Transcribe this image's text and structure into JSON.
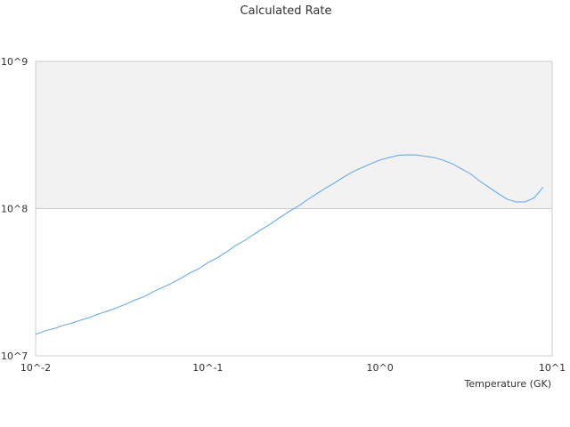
{
  "chart_data": {
    "type": "line",
    "title": "Calculated Rate",
    "xlabel": "Temperature (GK)",
    "ylabel": "",
    "x_scale": "log",
    "y_scale": "log",
    "xlim": [
      0.01,
      10
    ],
    "ylim": [
      10000000,
      1000000000
    ],
    "x_ticks": [
      "10^-2",
      "10^-1",
      "10^0",
      "10^1"
    ],
    "y_ticks": [
      "10^7",
      "10^8",
      "10^9"
    ],
    "grid": true,
    "legend": "none",
    "colors": {
      "line": "#5aa5e8",
      "band": "#f2f2f2",
      "border": "#cccccc"
    },
    "series": [
      {
        "x": [
          0.01,
          0.0114,
          0.0128,
          0.0144,
          0.0163,
          0.0183,
          0.0207,
          0.0234,
          0.0264,
          0.0298,
          0.0336,
          0.0379,
          0.0428,
          0.0483,
          0.0546,
          0.0616,
          0.0695,
          0.0785,
          0.0886,
          0.1,
          0.114,
          0.128,
          0.144,
          0.163,
          0.183,
          0.207,
          0.234,
          0.264,
          0.298,
          0.336,
          0.379,
          0.428,
          0.483,
          0.546,
          0.616,
          0.695,
          0.785,
          0.886,
          1.0,
          1.14,
          1.28,
          1.44,
          1.63,
          1.83,
          2.07,
          2.34,
          2.64,
          2.98,
          3.36,
          3.79,
          4.28,
          4.83,
          5.46,
          6.16,
          6.95,
          7.85,
          8.86
        ],
        "y": [
          14000000,
          14800000,
          15300000,
          16100000,
          16700000,
          17500000,
          18300000,
          19300000,
          20200000,
          21300000,
          22500000,
          24000000,
          25300000,
          27300000,
          29100000,
          31100000,
          33500000,
          36400000,
          39100000,
          42900000,
          46400000,
          50700000,
          55800000,
          60600000,
          66300000,
          72700000,
          79300000,
          87400000,
          96000000,
          104000000,
          115000000,
          126000000,
          138000000,
          150000000,
          164000000,
          178000000,
          190000000,
          202000000,
          214000000,
          223000000,
          230000000,
          232000000,
          231000000,
          227000000,
          222000000,
          213000000,
          201000000,
          186000000,
          172000000,
          154000000,
          140000000,
          127000000,
          116000000,
          111000000,
          111000000,
          118000000,
          140000000
        ]
      }
    ]
  }
}
